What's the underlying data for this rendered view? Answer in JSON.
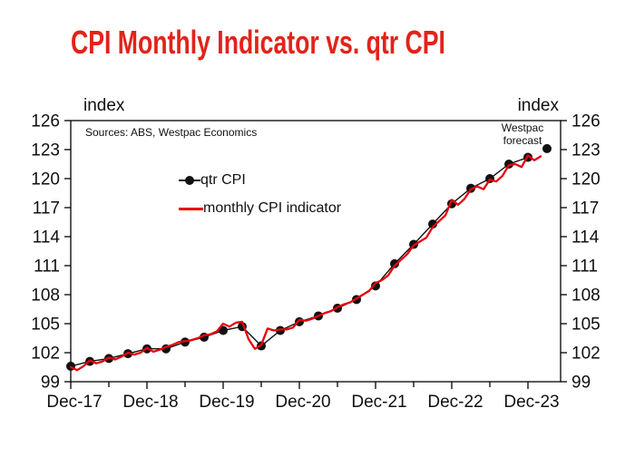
{
  "header": {
    "title": "CPI Monthly Indicator vs. qtr CPI"
  },
  "plot": {
    "unit_left": "index",
    "unit_right": "index",
    "sources": "Sources: ABS, Westpac Economics",
    "forecast_line1": "Westpac",
    "forecast_line2": "forecast"
  },
  "colors": {
    "title_red": "#e2231a",
    "monthly_red": "#e8000d",
    "qtr_black": "#111111",
    "axis_black": "#000000"
  },
  "chart_data": {
    "type": "line",
    "title": "CPI Monthly Indicator vs. qtr CPI",
    "ylabel": "index",
    "ylim": [
      99,
      126
    ],
    "yticks": [
      99,
      102,
      105,
      108,
      111,
      114,
      117,
      120,
      123,
      126
    ],
    "x_major_labels": [
      "Dec-17",
      "Dec-18",
      "Dec-19",
      "Dec-20",
      "Dec-21",
      "Dec-22",
      "Dec-23"
    ],
    "x_minor_ticks": "June of each year (semiannual ticks)",
    "x_range": "Dec-17 to May-24",
    "grid": false,
    "legend_position": "inside top-left",
    "annotation": "Westpac forecast (final quarterly point)",
    "series": [
      {
        "name": "qtr CPI",
        "frequency": "quarterly",
        "style": "thin black line with filled circle markers",
        "last_point_is_unconnected_forecast": true,
        "categories": [
          "Dec-17",
          "Mar-18",
          "Jun-18",
          "Sep-18",
          "Dec-18",
          "Mar-19",
          "Jun-19",
          "Sep-19",
          "Dec-19",
          "Mar-20",
          "Jun-20",
          "Sep-20",
          "Dec-20",
          "Mar-21",
          "Jun-21",
          "Sep-21",
          "Dec-21",
          "Mar-22",
          "Jun-22",
          "Sep-22",
          "Dec-22",
          "Mar-23",
          "Jun-23",
          "Sep-23",
          "Dec-23",
          "Mar-24"
        ],
        "values": [
          100.6,
          101.1,
          101.4,
          101.9,
          102.4,
          102.4,
          103.1,
          103.6,
          104.3,
          104.7,
          102.7,
          104.3,
          105.2,
          105.8,
          106.6,
          107.5,
          108.9,
          111.2,
          113.2,
          115.3,
          117.4,
          119.0,
          120.0,
          121.5,
          122.2,
          123.1
        ]
      },
      {
        "name": "monthly CPI indicator",
        "frequency": "monthly",
        "style": "red line, no markers",
        "start": "Dec-17",
        "end": "Feb-24",
        "values": [
          100.5,
          100.2,
          100.6,
          101.2,
          100.9,
          101.1,
          101.5,
          101.3,
          101.6,
          102.0,
          101.8,
          102.0,
          102.5,
          102.1,
          102.3,
          102.6,
          102.8,
          103.1,
          103.2,
          103.3,
          103.5,
          103.8,
          103.9,
          104.2,
          105.0,
          104.7,
          105.1,
          105.2,
          103.4,
          102.4,
          102.8,
          104.5,
          104.3,
          104.4,
          104.4,
          104.6,
          105.4,
          105.3,
          105.5,
          105.8,
          106.1,
          106.3,
          106.7,
          107.0,
          107.2,
          107.6,
          108.0,
          108.4,
          109.2,
          109.5,
          110.0,
          111.0,
          111.6,
          112.2,
          113.1,
          113.5,
          113.9,
          115.0,
          115.6,
          116.2,
          117.8,
          117.3,
          117.9,
          118.9,
          119.2,
          118.9,
          119.9,
          119.7,
          120.3,
          121.4,
          121.5,
          121.2,
          122.4,
          121.9,
          122.3
        ]
      }
    ]
  }
}
